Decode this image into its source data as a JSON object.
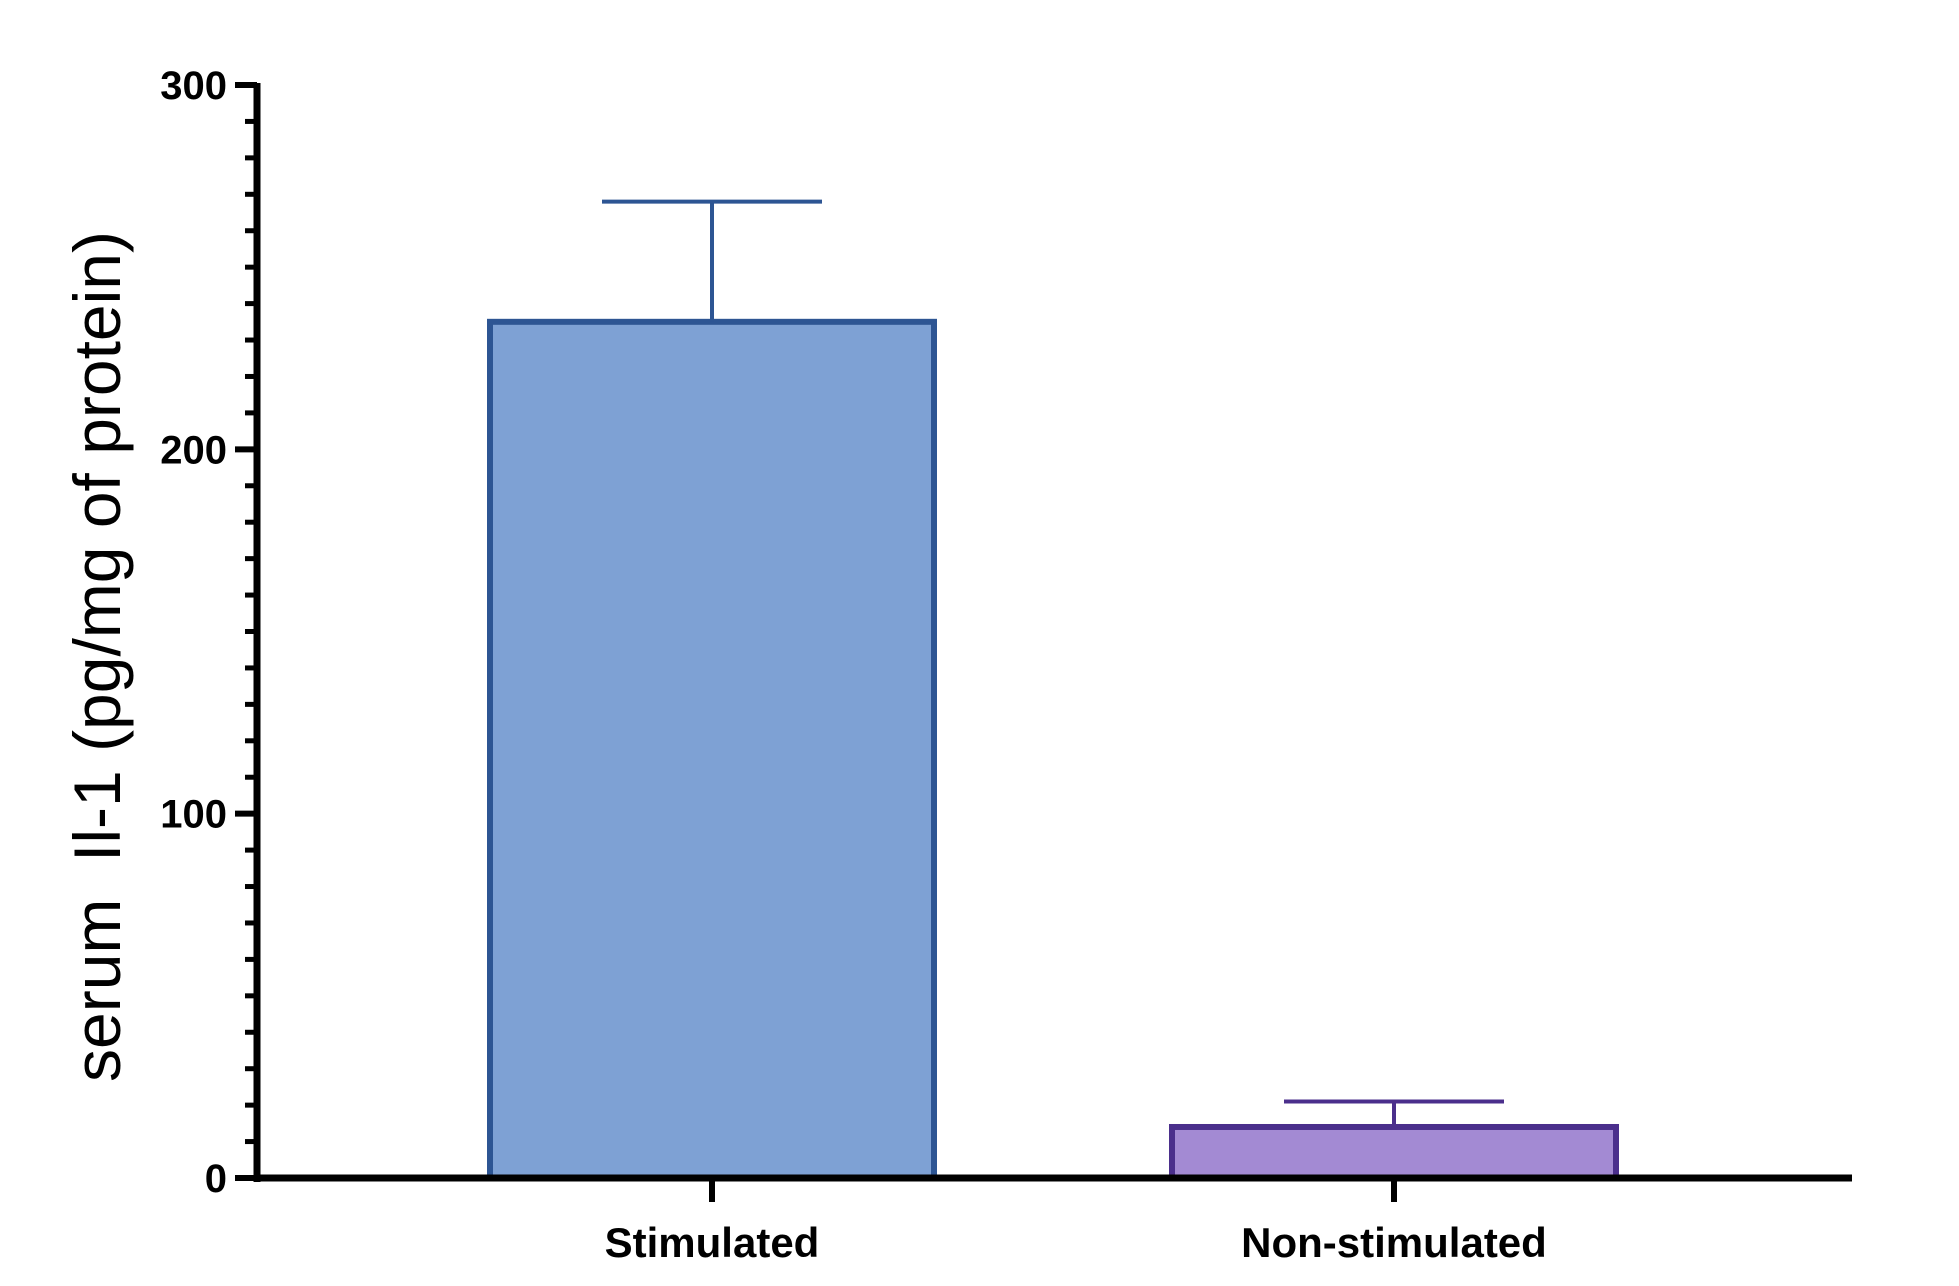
{
  "chart_data": {
    "type": "bar",
    "title": "",
    "xlabel": "",
    "ylabel": "serum  Il-1 (pg/mg of protein)",
    "ylim": [
      0,
      300
    ],
    "yticks": [
      0,
      100,
      200,
      300
    ],
    "y_minor_tick_step": 10,
    "grid": false,
    "legend": "none",
    "categories": [
      "Stimulated",
      "Non-stimulated"
    ],
    "series": [
      {
        "values": [
          235,
          14
        ],
        "error_upper": [
          33,
          7
        ],
        "fill_colors": [
          "#7ea1d4",
          "#a38ad3"
        ],
        "edge_colors": [
          "#2d5593",
          "#4b2f8c"
        ]
      }
    ]
  }
}
